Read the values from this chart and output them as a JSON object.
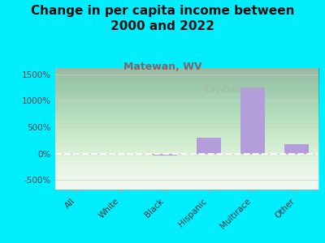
{
  "title": "Change in per capita income between\n2000 and 2022",
  "subtitle": "Matewan, WV",
  "categories": [
    "All",
    "White",
    "Black",
    "Hispanic",
    "Multirace",
    "Other"
  ],
  "values": [
    -10,
    -5,
    -30,
    300,
    1250,
    175
  ],
  "bar_color": "#b39ddb",
  "background_color": "#00eeff",
  "plot_bg_color_top": "#cde8cc",
  "plot_bg_color_bottom": "#eef8ee",
  "title_color": "#111111",
  "subtitle_color": "#8b6060",
  "ylabel_ticks": [
    "-500%",
    "0%",
    "500%",
    "1000%",
    "1500%"
  ],
  "ytick_vals": [
    -500,
    0,
    500,
    1000,
    1500
  ],
  "ylim": [
    -680,
    1620
  ],
  "watermark": "City-Data.com",
  "title_fontsize": 11,
  "subtitle_fontsize": 9
}
